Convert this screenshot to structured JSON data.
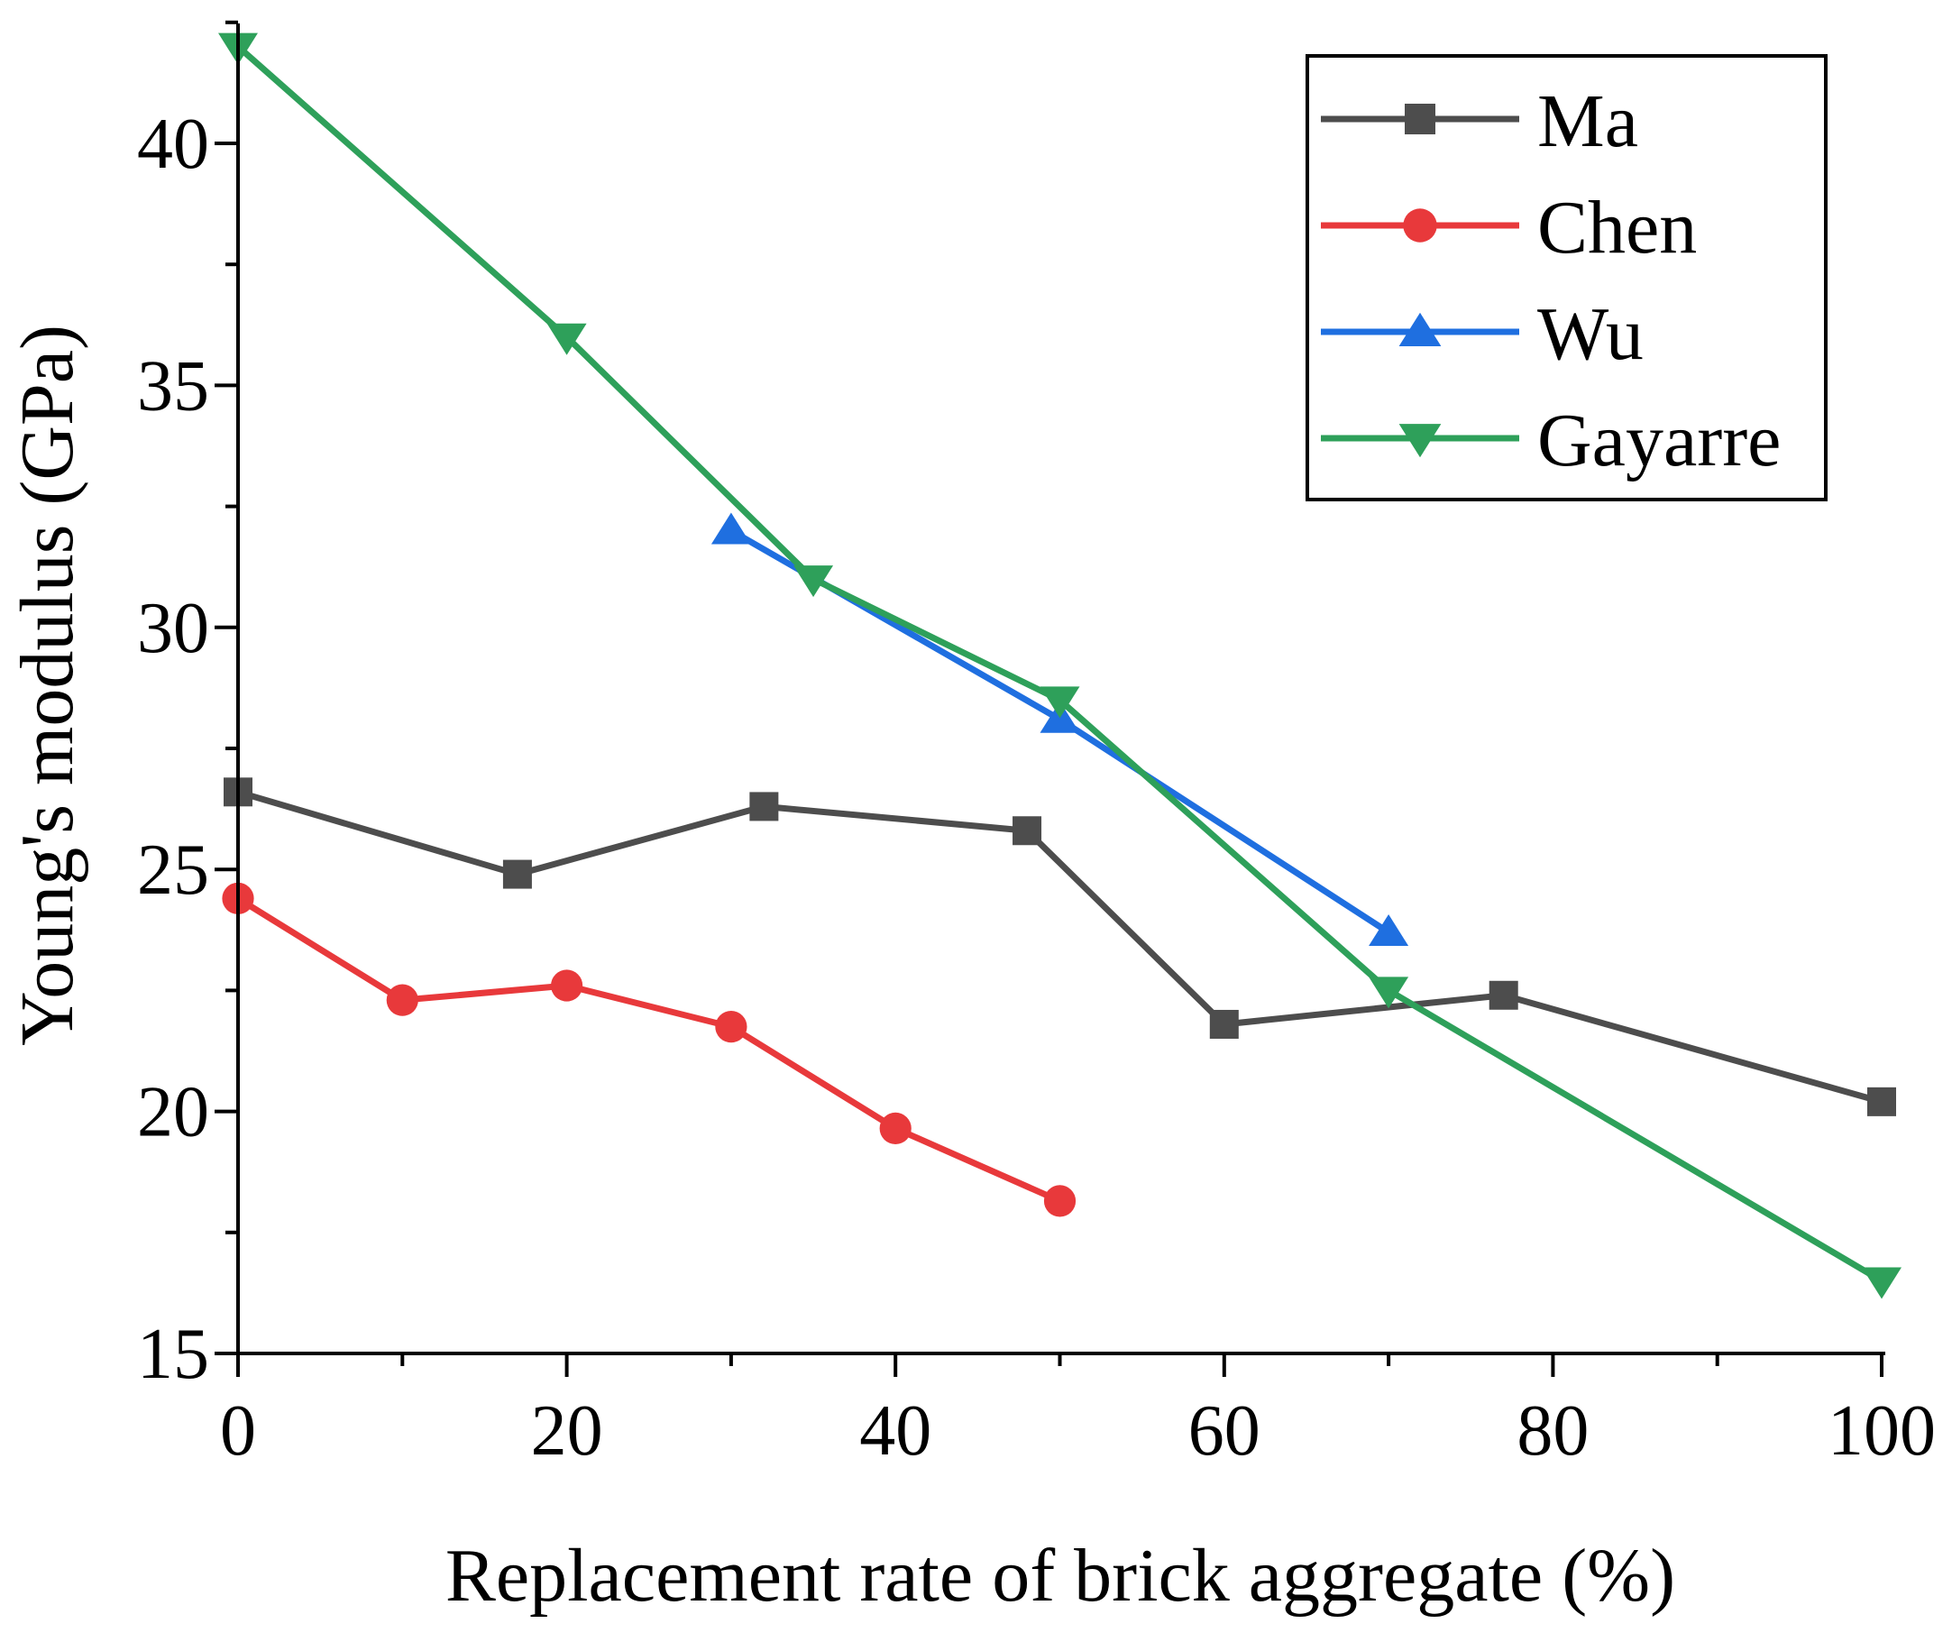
{
  "chart_data": {
    "type": "line",
    "title": "",
    "xlabel": "Replacement rate of brick aggregate (%)",
    "ylabel": "Young's modulus (GPa)",
    "xlim": [
      0,
      100
    ],
    "ylim": [
      15,
      42.5
    ],
    "x_ticks": [
      0,
      20,
      40,
      60,
      80,
      100
    ],
    "y_ticks": [
      15,
      20,
      25,
      30,
      35,
      40
    ],
    "grid": false,
    "legend_position": "top-right",
    "series": [
      {
        "name": "Ma",
        "color": "#4d4d4d",
        "marker": "square",
        "x": [
          0,
          17,
          32,
          48,
          60,
          77,
          100
        ],
        "y": [
          26.6,
          24.9,
          26.3,
          25.8,
          21.8,
          22.4,
          20.2
        ]
      },
      {
        "name": "Chen",
        "color": "#e8393b",
        "marker": "circle",
        "x": [
          0,
          10,
          20,
          30,
          40,
          50
        ],
        "y": [
          24.4,
          22.3,
          22.6,
          21.75,
          19.65,
          18.15
        ]
      },
      {
        "name": "Wu",
        "color": "#1f6fe0",
        "marker": "triangle-up",
        "x": [
          30,
          50,
          70
        ],
        "y": [
          32.0,
          28.1,
          23.7
        ]
      },
      {
        "name": "Gayarre",
        "color": "#2ea05a",
        "marker": "triangle-down",
        "x": [
          0,
          20,
          35,
          50,
          70,
          100
        ],
        "y": [
          42.0,
          36.0,
          31.0,
          28.5,
          22.5,
          16.5
        ]
      }
    ]
  }
}
